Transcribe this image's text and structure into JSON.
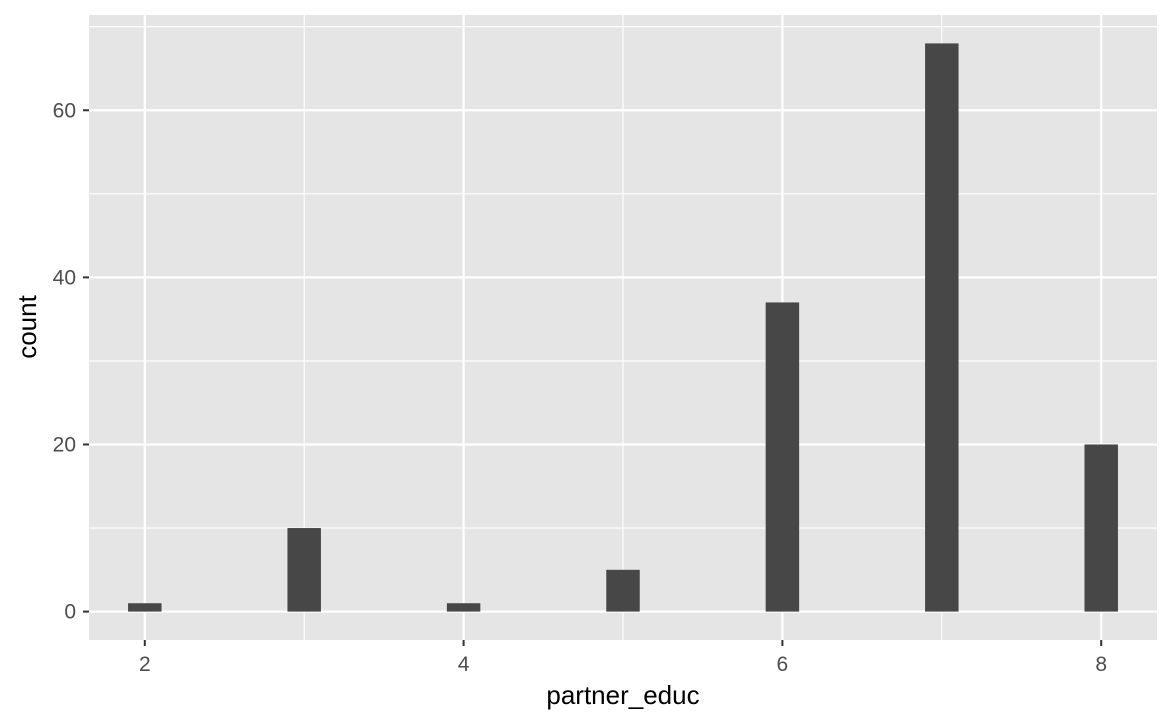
{
  "chart_data": {
    "type": "bar",
    "title": "",
    "xlabel": "partner_educ",
    "ylabel": "count",
    "x": [
      2,
      3,
      4,
      5,
      6,
      7,
      8
    ],
    "values": [
      1,
      10,
      1,
      5,
      37,
      68,
      20
    ],
    "xlim": [
      1.65,
      8.35
    ],
    "ylim": [
      -3.4,
      71.4
    ],
    "x_ticks": [
      2,
      4,
      6,
      8
    ],
    "x_minor_ticks": [
      3,
      5,
      7
    ],
    "y_ticks": [
      0,
      20,
      40,
      60
    ],
    "y_minor_ticks": [
      10,
      30,
      50,
      70
    ],
    "bar_width": 0.21,
    "grid": true,
    "colors": {
      "panel": "#e5e5e5",
      "grid": "#ffffff",
      "bar": "#474747",
      "tick_label": "#4d4d4d",
      "tick_mark": "#333333",
      "axis_title": "#000000"
    }
  }
}
